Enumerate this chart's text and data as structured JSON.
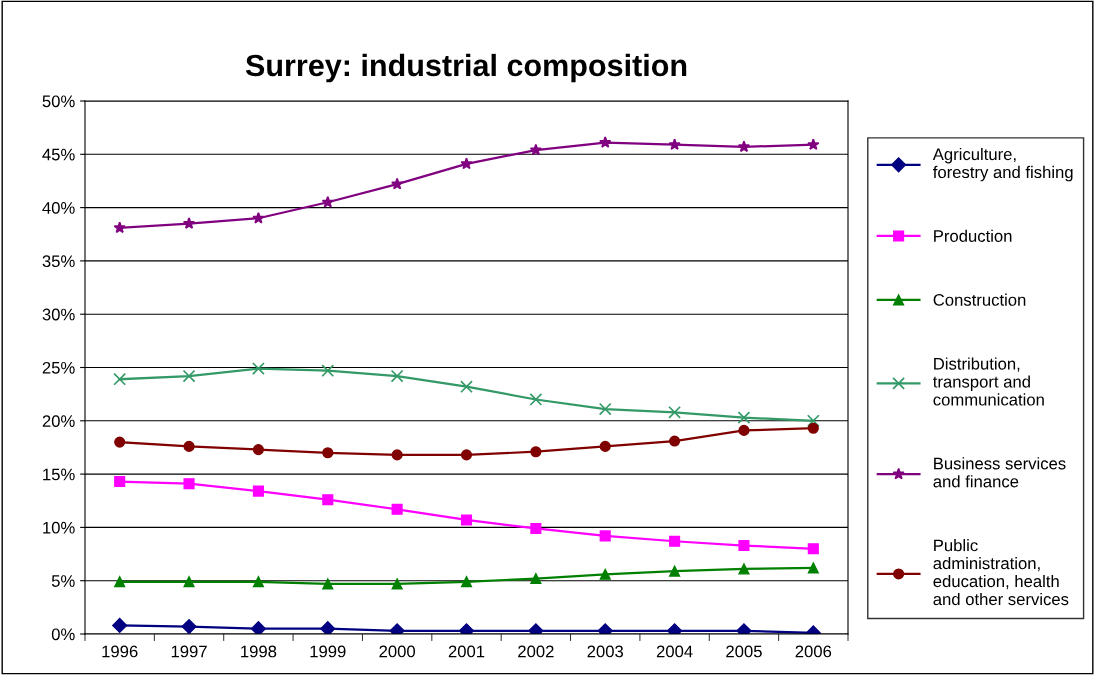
{
  "chart_data": {
    "type": "line",
    "title": "Surrey: industrial composition",
    "categories": [
      "1996",
      "1997",
      "1998",
      "1999",
      "2000",
      "2001",
      "2002",
      "2003",
      "2004",
      "2005",
      "2006"
    ],
    "series": [
      {
        "name": "Agriculture,\nforestry and fishing",
        "color": "#000080",
        "marker": "diamond",
        "values": [
          0.8,
          0.7,
          0.5,
          0.5,
          0.3,
          0.3,
          0.3,
          0.3,
          0.3,
          0.3,
          0.1
        ]
      },
      {
        "name": "Production",
        "color": "#ff00ff",
        "marker": "square",
        "values": [
          14.3,
          14.1,
          13.4,
          12.6,
          11.7,
          10.7,
          9.9,
          9.2,
          8.7,
          8.3,
          8.0
        ]
      },
      {
        "name": "Construction",
        "color": "#008000",
        "marker": "triangle",
        "values": [
          4.9,
          4.9,
          4.9,
          4.7,
          4.7,
          4.9,
          5.2,
          5.6,
          5.9,
          6.1,
          6.2
        ]
      },
      {
        "name": "Distribution,\ntransport and\ncommunication",
        "color": "#339966",
        "marker": "cross",
        "values": [
          23.9,
          24.2,
          24.9,
          24.7,
          24.2,
          23.2,
          22.0,
          21.1,
          20.8,
          20.3,
          20.0
        ]
      },
      {
        "name": "Business services\nand finance",
        "color": "#800080",
        "marker": "star",
        "values": [
          38.1,
          38.5,
          39.0,
          40.5,
          42.2,
          44.1,
          45.4,
          46.1,
          45.9,
          45.7,
          45.9
        ]
      },
      {
        "name": "Public\nadministration,\neducation, health\nand other services",
        "color": "#800000",
        "marker": "circle",
        "values": [
          18.0,
          17.6,
          17.3,
          17.0,
          16.8,
          16.8,
          17.1,
          17.6,
          18.1,
          19.1,
          19.3
        ]
      }
    ],
    "ylim": [
      0,
      50
    ],
    "yticks": [
      {
        "value": 0,
        "label": "0%"
      },
      {
        "value": 5,
        "label": "5%"
      },
      {
        "value": 10,
        "label": "10%"
      },
      {
        "value": 15,
        "label": "15%"
      },
      {
        "value": 20,
        "label": "20%"
      },
      {
        "value": 25,
        "label": "25%"
      },
      {
        "value": 30,
        "label": "30%"
      },
      {
        "value": 35,
        "label": "35%"
      },
      {
        "value": 40,
        "label": "40%"
      },
      {
        "value": 45,
        "label": "45%"
      },
      {
        "value": 50,
        "label": "50%"
      }
    ],
    "grid": "y",
    "legend": "right",
    "line_style": "solid"
  }
}
